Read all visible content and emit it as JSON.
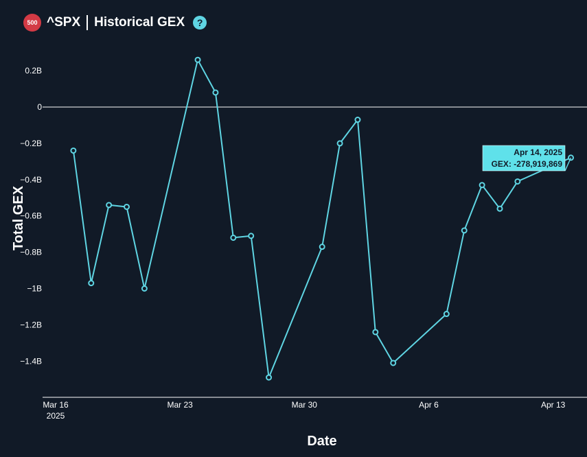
{
  "header": {
    "badge": "500",
    "ticker": "^SPX",
    "title": "Historical GEX",
    "help_icon": "?"
  },
  "colors": {
    "background": "#111a27",
    "line": "#5fd5e3",
    "badge": "#d33a45",
    "tooltip_bg": "#5fe1ea"
  },
  "tooltip": {
    "date": "Apr 14, 2025",
    "value": "GEX: -278,919,869"
  },
  "chart_data": {
    "type": "line",
    "title": "",
    "xlabel": "Date",
    "ylabel": "Total GEX",
    "xlim": [
      "2025-03-16",
      "2025-04-14"
    ],
    "ylim": [
      -1.6,
      0.3
    ],
    "grid": false,
    "zero_line": true,
    "y_ticks": [
      {
        "value": 0.2,
        "label": "0.2B"
      },
      {
        "value": 0,
        "label": "0"
      },
      {
        "value": -0.2,
        "label": "−0.2B"
      },
      {
        "value": -0.4,
        "label": "−0.4B"
      },
      {
        "value": -0.6,
        "label": "−0.6B"
      },
      {
        "value": -0.8,
        "label": "−0.8B"
      },
      {
        "value": -1.0,
        "label": "−1B"
      },
      {
        "value": -1.2,
        "label": "−1.2B"
      },
      {
        "value": -1.4,
        "label": "−1.4B"
      }
    ],
    "x_ticks": [
      {
        "date": "2025-03-16",
        "label": "Mar 16",
        "sublabel": "2025"
      },
      {
        "date": "2025-03-23",
        "label": "Mar 23",
        "sublabel": ""
      },
      {
        "date": "2025-03-30",
        "label": "Mar 30",
        "sublabel": ""
      },
      {
        "date": "2025-04-06",
        "label": "Apr 6",
        "sublabel": ""
      },
      {
        "date": "2025-04-13",
        "label": "Apr 13",
        "sublabel": ""
      }
    ],
    "series": [
      {
        "unit": "B",
        "points": [
          {
            "x": "2025-03-17",
            "y": -0.24
          },
          {
            "x": "2025-03-18",
            "y": -0.97
          },
          {
            "x": "2025-03-19",
            "y": -0.54
          },
          {
            "x": "2025-03-20",
            "y": -0.55
          },
          {
            "x": "2025-03-21",
            "y": -1.0
          },
          {
            "x": "2025-03-24",
            "y": 0.26
          },
          {
            "x": "2025-03-25",
            "y": 0.08
          },
          {
            "x": "2025-03-26",
            "y": -0.72
          },
          {
            "x": "2025-03-27",
            "y": -0.71
          },
          {
            "x": "2025-03-28",
            "y": -1.49
          },
          {
            "x": "2025-03-31",
            "y": -0.77
          },
          {
            "x": "2025-04-01",
            "y": -0.2
          },
          {
            "x": "2025-04-02",
            "y": -0.07
          },
          {
            "x": "2025-04-03",
            "y": -1.24
          },
          {
            "x": "2025-04-04",
            "y": -1.41
          },
          {
            "x": "2025-04-07",
            "y": -1.14
          },
          {
            "x": "2025-04-08",
            "y": -0.68
          },
          {
            "x": "2025-04-09",
            "y": -0.43
          },
          {
            "x": "2025-04-10",
            "y": -0.56
          },
          {
            "x": "2025-04-11",
            "y": -0.41
          },
          {
            "x": "2025-04-14",
            "y": -0.279
          }
        ]
      }
    ]
  }
}
